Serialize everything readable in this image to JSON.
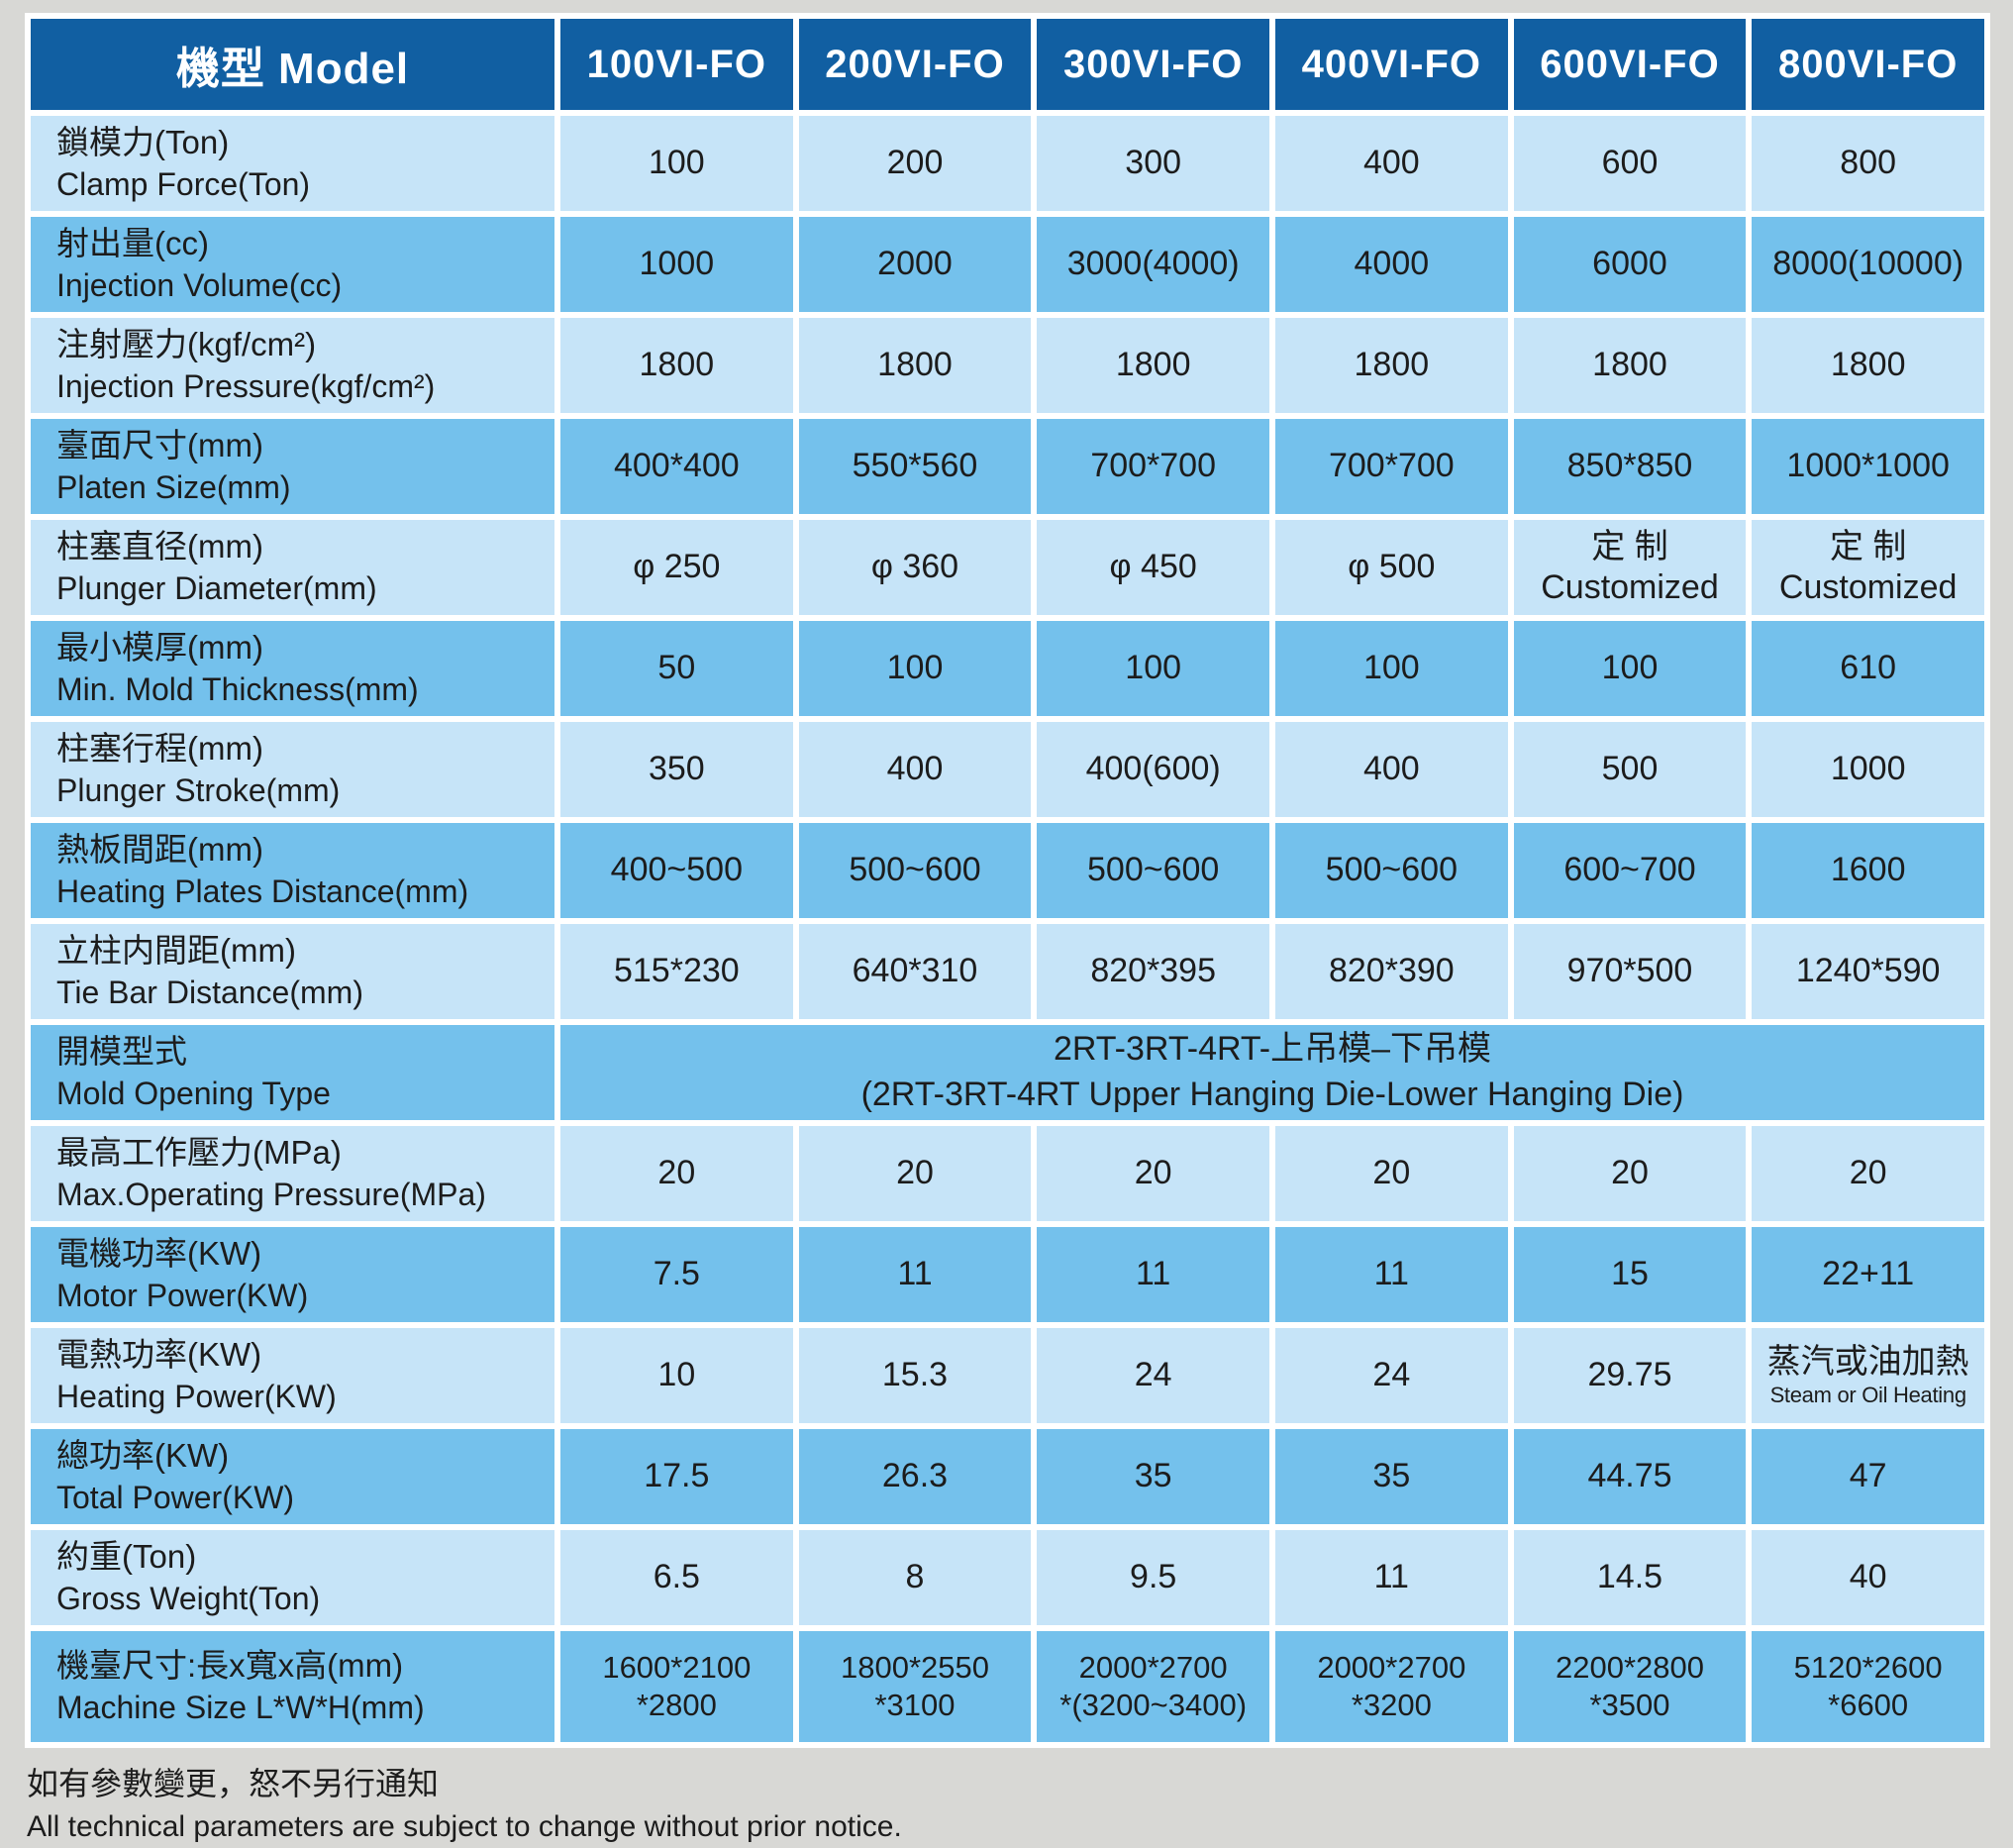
{
  "table": {
    "header": {
      "model_label": "機型 Model",
      "columns": [
        "100VI-FO",
        "200VI-FO",
        "300VI-FO",
        "400VI-FO",
        "600VI-FO",
        "800VI-FO"
      ]
    },
    "rows": [
      {
        "zh": "鎖模力(Ton)",
        "en": "Clamp Force(Ton)",
        "shade": "light",
        "values": [
          "100",
          "200",
          "300",
          "400",
          "600",
          "800"
        ]
      },
      {
        "zh": "射出量(cc)",
        "en": "Injection Volume(cc)",
        "shade": "medium",
        "values": [
          "1000",
          "2000",
          "3000(4000)",
          "4000",
          "6000",
          "8000(10000)"
        ]
      },
      {
        "zh": "注射壓力(kgf/cm²)",
        "en": "Injection Pressure(kgf/cm²)",
        "shade": "light",
        "values": [
          "1800",
          "1800",
          "1800",
          "1800",
          "1800",
          "1800"
        ]
      },
      {
        "zh": "臺面尺寸(mm)",
        "en": "Platen Size(mm)",
        "shade": "medium",
        "values": [
          "400*400",
          "550*560",
          "700*700",
          "700*700",
          "850*850",
          "1000*1000"
        ]
      },
      {
        "zh": "柱塞直径(mm)",
        "en": "Plunger Diameter(mm)",
        "shade": "light",
        "values": [
          "φ 250",
          "φ 360",
          "φ 450",
          "φ 500",
          "定 制\nCustomized",
          "定 制\nCustomized"
        ]
      },
      {
        "zh": "最小模厚(mm)",
        "en": "Min. Mold Thickness(mm)",
        "shade": "medium",
        "values": [
          "50",
          "100",
          "100",
          "100",
          "100",
          "610"
        ]
      },
      {
        "zh": "柱塞行程(mm)",
        "en": "Plunger Stroke(mm)",
        "shade": "light",
        "values": [
          "350",
          "400",
          "400(600)",
          "400",
          "500",
          "1000"
        ]
      },
      {
        "zh": "熱板間距(mm)",
        "en": "Heating Plates Distance(mm)",
        "shade": "medium",
        "values": [
          "400~500",
          "500~600",
          "500~600",
          "500~600",
          "600~700",
          "1600"
        ]
      },
      {
        "zh": "立柱内間距(mm)",
        "en": "Tie Bar Distance(mm)",
        "shade": "light",
        "values": [
          "515*230",
          "640*310",
          "820*395",
          "820*390",
          "970*500",
          "1240*590"
        ]
      },
      {
        "zh": "開模型式",
        "en": "Mold Opening Type",
        "shade": "medium",
        "span": "2RT-3RT-4RT-上吊模–下吊模\n(2RT-3RT-4RT Upper Hanging Die-Lower Hanging Die)"
      },
      {
        "zh": "最高工作壓力(MPa)",
        "en": "Max.Operating Pressure(MPa)",
        "shade": "light",
        "values": [
          "20",
          "20",
          "20",
          "20",
          "20",
          "20"
        ]
      },
      {
        "zh": "電機功率(KW)",
        "en": "Motor Power(KW)",
        "shade": "medium",
        "values": [
          "7.5",
          "11",
          "11",
          "11",
          "15",
          "22+11"
        ]
      },
      {
        "zh": "電熱功率(KW)",
        "en": "Heating Power(KW)",
        "shade": "light",
        "values": [
          "10",
          "15.3",
          "24",
          "24",
          "29.75",
          {
            "zh": "蒸汽或油加熱",
            "en": "Steam or Oil Heating"
          }
        ]
      },
      {
        "zh": "總功率(KW)",
        "en": "Total Power(KW)",
        "shade": "medium",
        "values": [
          "17.5",
          "26.3",
          "35",
          "35",
          "44.75",
          "47"
        ]
      },
      {
        "zh": "約重(Ton)",
        "en": "Gross Weight(Ton)",
        "shade": "light",
        "values": [
          "6.5",
          "8",
          "9.5",
          "11",
          "14.5",
          "40"
        ]
      },
      {
        "zh": "機臺尺寸:長x寬x高(mm)",
        "en": "Machine Size L*W*H(mm)",
        "shade": "medium",
        "values": [
          "1600*2100\n*2800",
          "1800*2550\n*3100",
          "2000*2700\n*(3200~3400)",
          "2000*2700\n*3200",
          "2200*2800\n*3500",
          "5120*2600\n*6600"
        ]
      }
    ],
    "footnote_zh": "如有參數變更，怒不另行通知",
    "footnote_en": "All technical parameters are subject to change without prior notice."
  },
  "colors": {
    "header_blue": "#115fa2",
    "row_light": "#c6e4f8",
    "row_medium": "#74c1ec",
    "background": "#d8d8d5",
    "divider": "#ffffff"
  }
}
